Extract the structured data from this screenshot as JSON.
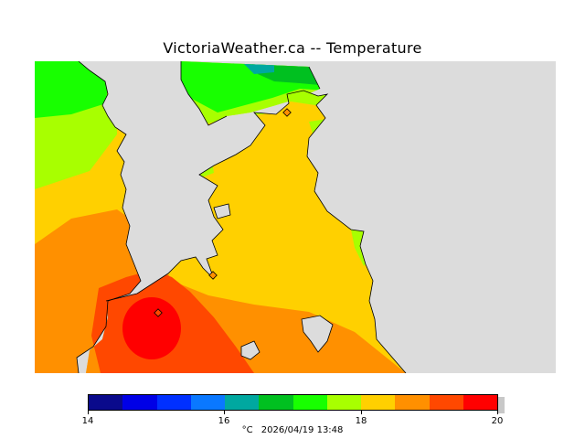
{
  "title": "VictoriaWeather.ca -- Temperature",
  "map": {
    "land_color": "#dcdcdc",
    "stations": [
      "station-north",
      "station-east",
      "station-south"
    ]
  },
  "legend": {
    "colors": [
      "#0a0a8c",
      "#0000e6",
      "#0030ff",
      "#0a78ff",
      "#00a8a0",
      "#00c020",
      "#18ff00",
      "#a8ff00",
      "#ffd000",
      "#ff9000",
      "#ff4800",
      "#ff0000"
    ],
    "tick_labels": [
      "14",
      "16",
      "18",
      "20"
    ],
    "unit": "°C",
    "timestamp": "2026/04/19 13:48"
  }
}
